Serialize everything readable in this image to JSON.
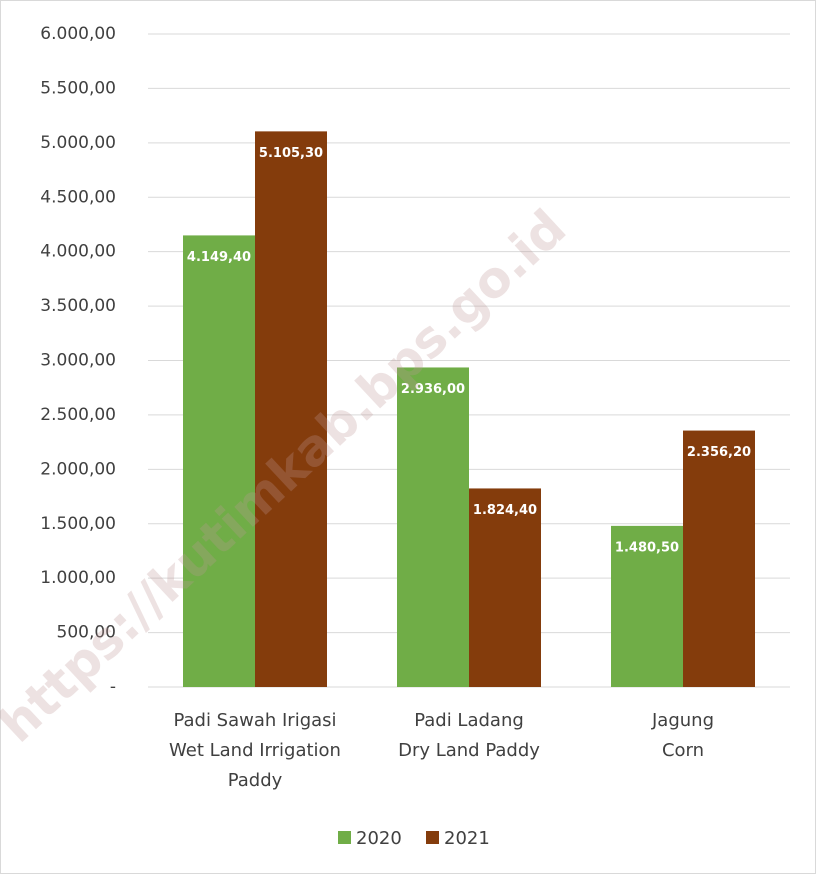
{
  "chart_data": {
    "type": "bar",
    "categories": [
      "Padi Sawah Irigasi\nWet Land Irrigation\nPaddy",
      "Padi Ladang\nDry Land Paddy",
      "Jagung\nCorn"
    ],
    "series": [
      {
        "name": "2020",
        "color": "#70ad47",
        "values": [
          4149.4,
          2936.0,
          1480.5
        ],
        "value_labels": [
          "4.149,40",
          "2.936,00",
          "1.480,50"
        ]
      },
      {
        "name": "2021",
        "color": "#843c0c",
        "values": [
          5105.3,
          1824.4,
          2356.2
        ],
        "value_labels": [
          "5.105,30",
          "1.824,40",
          "2.356,20"
        ]
      }
    ],
    "ylim": [
      0,
      6000
    ],
    "yticks": [
      {
        "value": 0,
        "label": "-"
      },
      {
        "value": 500,
        "label": "500,00"
      },
      {
        "value": 1000,
        "label": "1.000,00"
      },
      {
        "value": 1500,
        "label": "1.500,00"
      },
      {
        "value": 2000,
        "label": "2.000,00"
      },
      {
        "value": 2500,
        "label": "2.500,00"
      },
      {
        "value": 3000,
        "label": "3.000,00"
      },
      {
        "value": 3500,
        "label": "3.500,00"
      },
      {
        "value": 4000,
        "label": "4.000,00"
      },
      {
        "value": 4500,
        "label": "4.500,00"
      },
      {
        "value": 5000,
        "label": "5.000,00"
      },
      {
        "value": 5500,
        "label": "5.500,00"
      },
      {
        "value": 6000,
        "label": "6.000,00"
      }
    ],
    "grid": true,
    "legend": "bottom",
    "watermark": "https://kutimkab.bps.go.id"
  }
}
